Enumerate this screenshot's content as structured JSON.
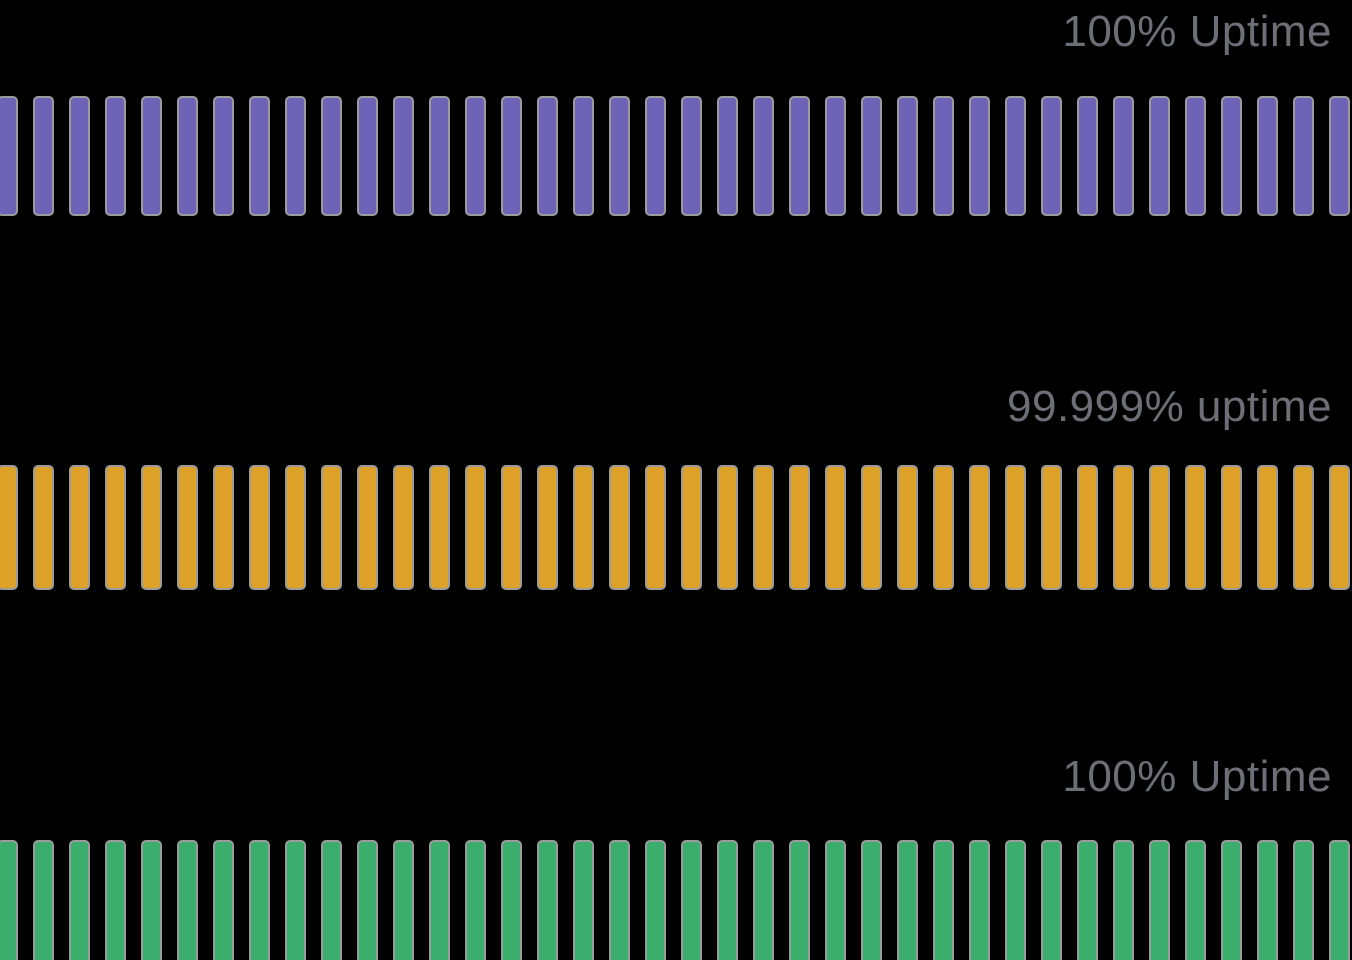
{
  "colors": {
    "background": "#000000",
    "bar_border": "#9B9B9B",
    "label_text": "#6C7076",
    "purple": "#6F63B8",
    "amber": "#DDA128",
    "green": "#3BAE6E"
  },
  "rows": [
    {
      "id": "service-1",
      "label": "100% Uptime",
      "uptime_percent": 100,
      "bar_color": "#6F63B8",
      "bar_count": 38
    },
    {
      "id": "service-2",
      "label": "99.999% uptime",
      "uptime_percent": 99.999,
      "bar_color": "#DDA128",
      "bar_count": 38
    },
    {
      "id": "service-3",
      "label": "100% Uptime",
      "uptime_percent": 100,
      "bar_color": "#3BAE6E",
      "bar_count": 38
    }
  ],
  "chart_data": {
    "type": "bar",
    "title": "",
    "description": "Three horizontal uptime-status strips; every bar is uniform full height (status tick marks), value encoded by row label",
    "categories": [
      "service-1",
      "service-2",
      "service-3"
    ],
    "series": [
      {
        "name": "uptime_percent",
        "values": [
          100,
          99.999,
          100
        ]
      }
    ],
    "bar_counts_per_row": [
      38,
      38,
      38
    ],
    "row_labels": [
      "100% Uptime",
      "99.999% uptime",
      "100% Uptime"
    ],
    "row_colors": [
      "#6F63B8",
      "#DDA128",
      "#3BAE6E"
    ],
    "legend": "none",
    "grid": false,
    "axes": "none",
    "label_position": "top-right of each row"
  }
}
